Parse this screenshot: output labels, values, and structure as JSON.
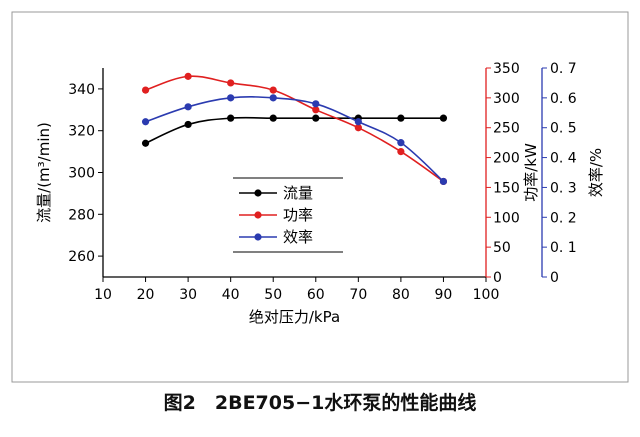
{
  "caption": "图2　2BE705−1水环泵的性能曲线",
  "chart_data": {
    "type": "line",
    "x": [
      20,
      30,
      40,
      50,
      60,
      70,
      80,
      90
    ],
    "xlabel": "绝对压力/kPa",
    "xlim": [
      10,
      100
    ],
    "xticks": [
      10,
      20,
      30,
      40,
      50,
      60,
      70,
      80,
      90,
      100
    ],
    "axes": {
      "left": {
        "label": "流量/(m³/min)",
        "lim": [
          250,
          350
        ],
        "ticks": [
          260,
          280,
          300,
          320,
          340
        ],
        "color": "#000000"
      },
      "right1": {
        "label": "功率/kW",
        "lim": [
          0,
          350
        ],
        "ticks": [
          0,
          50,
          100,
          150,
          200,
          250,
          300,
          350
        ],
        "color": "#e02020"
      },
      "right2": {
        "label": "效率/%",
        "lim": [
          0,
          0.7
        ],
        "ticks": [
          0,
          0.1,
          0.2,
          0.3,
          0.4,
          0.5,
          0.6,
          0.7
        ],
        "ticklabels": [
          "0",
          "0. 1",
          "0. 2",
          "0. 3",
          "0. 4",
          "0. 5",
          "0. 6",
          "0. 7"
        ],
        "color": "#2b3bb0"
      }
    },
    "series": [
      {
        "name": "流量",
        "axis": "left",
        "color": "#000000",
        "values": [
          314,
          323,
          326,
          326,
          326,
          326,
          326,
          326
        ]
      },
      {
        "name": "功率",
        "axis": "right1",
        "color": "#e02020",
        "values": [
          313,
          336,
          325,
          313,
          280,
          250,
          210,
          160
        ]
      },
      {
        "name": "效率",
        "axis": "right2",
        "color": "#2b3bb0",
        "values": [
          0.52,
          0.57,
          0.6,
          0.6,
          0.58,
          0.52,
          0.45,
          0.32
        ]
      }
    ],
    "legend": "center-left"
  }
}
